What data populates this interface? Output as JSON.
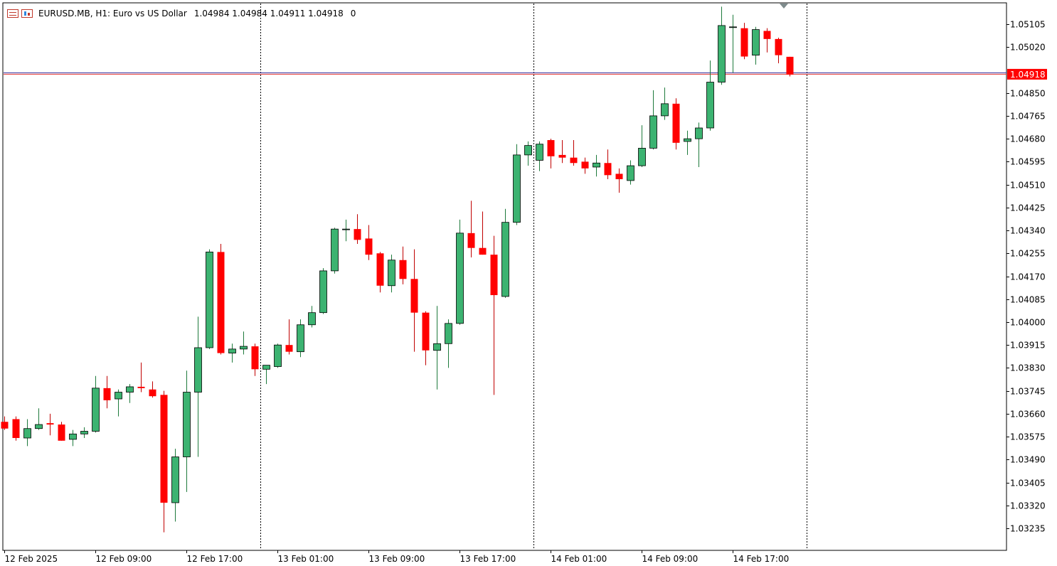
{
  "header": {
    "symbol_text": "EURUSD.MB, H1:  Euro vs US Dollar",
    "ohlc_text": "1.04984 1.04984 1.04911 1.04918",
    "spread_text": "0"
  },
  "current_price": "1.04918",
  "current_price_value": 1.04918,
  "icons": [
    "chart-window-icon",
    "chart-properties-icon",
    "shift-marker-icon"
  ],
  "colors": {
    "up": "#3cb371",
    "down": "#ff0000",
    "outline": "#000000",
    "bid_line": "#e03030",
    "ask_line": "#3030a0",
    "price_label_bg": "#ff0000",
    "price_label_text": "#ffffff",
    "grid": "#000000",
    "background": "#ffffff"
  },
  "chart_data": {
    "type": "candlestick",
    "symbol": "EURUSD.MB",
    "timeframe": "H1",
    "grid": false,
    "ylim": [
      1.0315,
      1.0519
    ],
    "y_ticks": [
      "1.05105",
      "1.05020",
      "1.04850",
      "1.04765",
      "1.04680",
      "1.04595",
      "1.04510",
      "1.04425",
      "1.04340",
      "1.04255",
      "1.04170",
      "1.04085",
      "1.04000",
      "1.03915",
      "1.03830",
      "1.03745",
      "1.03660",
      "1.03575",
      "1.03490",
      "1.03405",
      "1.03320",
      "1.03235"
    ],
    "x_labels": [
      {
        "index": 0,
        "text": "12 Feb 2025"
      },
      {
        "index": 8,
        "text": "12 Feb 09:00"
      },
      {
        "index": 16,
        "text": "12 Feb 17:00"
      },
      {
        "index": 24,
        "text": "13 Feb 01:00"
      },
      {
        "index": 32,
        "text": "13 Feb 09:00"
      },
      {
        "index": 40,
        "text": "13 Feb 17:00"
      },
      {
        "index": 48,
        "text": "14 Feb 01:00"
      },
      {
        "index": 56,
        "text": "14 Feb 09:00"
      },
      {
        "index": 64,
        "text": "14 Feb 17:00"
      }
    ],
    "day_separators_after_index": [
      22.5,
      46.5,
      70.5
    ],
    "series": [
      {
        "name": "EURUSD.MB",
        "candles": [
          {
            "o": 1.0363,
            "h": 1.0365,
            "l": 1.036,
            "c": 1.03605
          },
          {
            "o": 1.0364,
            "h": 1.0365,
            "l": 1.0356,
            "c": 1.0357
          },
          {
            "o": 1.0357,
            "h": 1.0364,
            "l": 1.0354,
            "c": 1.03605
          },
          {
            "o": 1.03605,
            "h": 1.0368,
            "l": 1.036,
            "c": 1.0362
          },
          {
            "o": 1.03625,
            "h": 1.0366,
            "l": 1.0358,
            "c": 1.0362
          },
          {
            "o": 1.0362,
            "h": 1.0363,
            "l": 1.0356,
            "c": 1.0356
          },
          {
            "o": 1.03565,
            "h": 1.036,
            "l": 1.0354,
            "c": 1.03585
          },
          {
            "o": 1.03585,
            "h": 1.0361,
            "l": 1.0357,
            "c": 1.03595
          },
          {
            "o": 1.03595,
            "h": 1.038,
            "l": 1.0359,
            "c": 1.03755
          },
          {
            "o": 1.03755,
            "h": 1.038,
            "l": 1.0368,
            "c": 1.0371
          },
          {
            "o": 1.03715,
            "h": 1.0375,
            "l": 1.0365,
            "c": 1.0374
          },
          {
            "o": 1.0374,
            "h": 1.0377,
            "l": 1.037,
            "c": 1.0376
          },
          {
            "o": 1.0376,
            "h": 1.0385,
            "l": 1.0374,
            "c": 1.03755
          },
          {
            "o": 1.0375,
            "h": 1.0378,
            "l": 1.0372,
            "c": 1.03725
          },
          {
            "o": 1.0373,
            "h": 1.03745,
            "l": 1.0322,
            "c": 1.0333
          },
          {
            "o": 1.0333,
            "h": 1.0353,
            "l": 1.0326,
            "c": 1.035
          },
          {
            "o": 1.035,
            "h": 1.0382,
            "l": 1.0337,
            "c": 1.0374
          },
          {
            "o": 1.0374,
            "h": 1.0402,
            "l": 1.035,
            "c": 1.03905
          },
          {
            "o": 1.03905,
            "h": 1.0427,
            "l": 1.039,
            "c": 1.0426
          },
          {
            "o": 1.0426,
            "h": 1.0429,
            "l": 1.0388,
            "c": 1.03885
          },
          {
            "o": 1.03885,
            "h": 1.0392,
            "l": 1.0385,
            "c": 1.039
          },
          {
            "o": 1.039,
            "h": 1.03965,
            "l": 1.0388,
            "c": 1.0391
          },
          {
            "o": 1.0391,
            "h": 1.0392,
            "l": 1.038,
            "c": 1.03825
          },
          {
            "o": 1.03825,
            "h": 1.0384,
            "l": 1.0377,
            "c": 1.0384
          },
          {
            "o": 1.03835,
            "h": 1.0392,
            "l": 1.0383,
            "c": 1.03915
          },
          {
            "o": 1.03915,
            "h": 1.0401,
            "l": 1.0388,
            "c": 1.0389
          },
          {
            "o": 1.0389,
            "h": 1.0401,
            "l": 1.0387,
            "c": 1.0399
          },
          {
            "o": 1.0399,
            "h": 1.0406,
            "l": 1.0398,
            "c": 1.04035
          },
          {
            "o": 1.04035,
            "h": 1.042,
            "l": 1.0403,
            "c": 1.0419
          },
          {
            "o": 1.0419,
            "h": 1.0435,
            "l": 1.0418,
            "c": 1.04345
          },
          {
            "o": 1.04345,
            "h": 1.0438,
            "l": 1.043,
            "c": 1.04345
          },
          {
            "o": 1.04345,
            "h": 1.044,
            "l": 1.0429,
            "c": 1.04305
          },
          {
            "o": 1.0431,
            "h": 1.0436,
            "l": 1.0423,
            "c": 1.0425
          },
          {
            "o": 1.04255,
            "h": 1.0426,
            "l": 1.0411,
            "c": 1.04135
          },
          {
            "o": 1.04135,
            "h": 1.0425,
            "l": 1.0411,
            "c": 1.0423
          },
          {
            "o": 1.0423,
            "h": 1.0428,
            "l": 1.0414,
            "c": 1.0416
          },
          {
            "o": 1.0416,
            "h": 1.0427,
            "l": 1.0389,
            "c": 1.04035
          },
          {
            "o": 1.04035,
            "h": 1.0404,
            "l": 1.0384,
            "c": 1.03895
          },
          {
            "o": 1.03895,
            "h": 1.0406,
            "l": 1.0375,
            "c": 1.0392
          },
          {
            "o": 1.0392,
            "h": 1.0401,
            "l": 1.0383,
            "c": 1.03995
          },
          {
            "o": 1.03995,
            "h": 1.0438,
            "l": 1.0399,
            "c": 1.0433
          },
          {
            "o": 1.0433,
            "h": 1.0445,
            "l": 1.0424,
            "c": 1.04275
          },
          {
            "o": 1.04275,
            "h": 1.0441,
            "l": 1.0425,
            "c": 1.0425
          },
          {
            "o": 1.0425,
            "h": 1.0432,
            "l": 1.0373,
            "c": 1.041
          },
          {
            "o": 1.04095,
            "h": 1.0442,
            "l": 1.0409,
            "c": 1.0437
          },
          {
            "o": 1.0437,
            "h": 1.0466,
            "l": 1.0436,
            "c": 1.0462
          },
          {
            "o": 1.0462,
            "h": 1.0467,
            "l": 1.0458,
            "c": 1.04655
          },
          {
            "o": 1.046,
            "h": 1.0467,
            "l": 1.0456,
            "c": 1.0466
          },
          {
            "o": 1.04675,
            "h": 1.0468,
            "l": 1.0457,
            "c": 1.04615
          },
          {
            "o": 1.0462,
            "h": 1.04675,
            "l": 1.0459,
            "c": 1.0461
          },
          {
            "o": 1.0461,
            "h": 1.04675,
            "l": 1.0458,
            "c": 1.0459
          },
          {
            "o": 1.04595,
            "h": 1.0461,
            "l": 1.0455,
            "c": 1.0457
          },
          {
            "o": 1.04575,
            "h": 1.0462,
            "l": 1.0454,
            "c": 1.0459
          },
          {
            "o": 1.0459,
            "h": 1.0464,
            "l": 1.0453,
            "c": 1.04545
          },
          {
            "o": 1.0455,
            "h": 1.0457,
            "l": 1.0448,
            "c": 1.0453
          },
          {
            "o": 1.04525,
            "h": 1.046,
            "l": 1.0451,
            "c": 1.0458
          },
          {
            "o": 1.0458,
            "h": 1.0473,
            "l": 1.04575,
            "c": 1.04645
          },
          {
            "o": 1.04645,
            "h": 1.0486,
            "l": 1.0464,
            "c": 1.04765
          },
          {
            "o": 1.04765,
            "h": 1.0487,
            "l": 1.0475,
            "c": 1.0481
          },
          {
            "o": 1.0481,
            "h": 1.0483,
            "l": 1.0464,
            "c": 1.04665
          },
          {
            "o": 1.0467,
            "h": 1.0471,
            "l": 1.0462,
            "c": 1.0468
          },
          {
            "o": 1.0468,
            "h": 1.0474,
            "l": 1.04575,
            "c": 1.0472
          },
          {
            "o": 1.0472,
            "h": 1.0497,
            "l": 1.0471,
            "c": 1.0489
          },
          {
            "o": 1.0489,
            "h": 1.0517,
            "l": 1.0488,
            "c": 1.051
          },
          {
            "o": 1.05095,
            "h": 1.0514,
            "l": 1.04925,
            "c": 1.05095
          },
          {
            "o": 1.0509,
            "h": 1.0511,
            "l": 1.04975,
            "c": 1.04985
          },
          {
            "o": 1.0499,
            "h": 1.05095,
            "l": 1.04955,
            "c": 1.05085
          },
          {
            "o": 1.0508,
            "h": 1.0509,
            "l": 1.05,
            "c": 1.0505
          },
          {
            "o": 1.0505,
            "h": 1.05055,
            "l": 1.0496,
            "c": 1.0499
          },
          {
            "o": 1.04984,
            "h": 1.04984,
            "l": 1.04911,
            "c": 1.04918
          }
        ]
      }
    ]
  }
}
